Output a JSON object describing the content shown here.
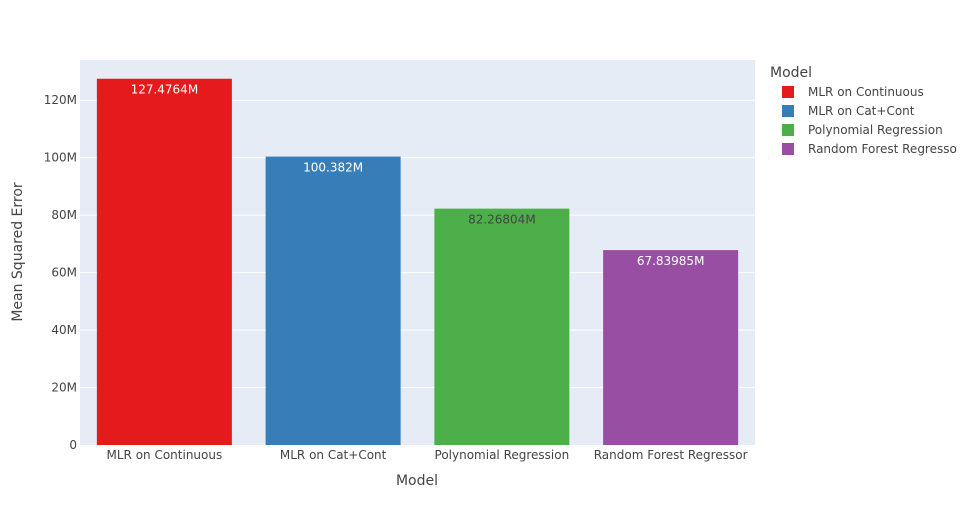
{
  "chart_data": {
    "type": "bar",
    "xlabel": "Model",
    "ylabel": "Mean Squared Error",
    "categories": [
      "MLR on Continuous",
      "MLR on Cat+Cont",
      "Polynomial Regression",
      "Random Forest Regressor"
    ],
    "values": [
      127476400,
      100382000,
      82268040,
      67839850
    ],
    "value_labels": [
      "127.4764M",
      "100.382M",
      "82.26804M",
      "67.83985M"
    ],
    "colors": [
      "#e41a1c",
      "#377eb8",
      "#4daf4a",
      "#984ea3"
    ],
    "label_colors": [
      "#ffffff",
      "#ffffff",
      "#444444",
      "#ffffff"
    ],
    "ylim": [
      0,
      134000000
    ],
    "yticks": [
      0,
      20000000,
      40000000,
      60000000,
      80000000,
      100000000,
      120000000
    ],
    "ytick_labels": [
      "0",
      "20M",
      "40M",
      "60M",
      "80M",
      "100M",
      "120M"
    ],
    "grid": true,
    "legend": {
      "title": "Model",
      "placement": "right",
      "entries": [
        "MLR on Continuous",
        "MLR on Cat+Cont",
        "Polynomial Regression",
        "Random Forest Regresso"
      ]
    },
    "plot_background": "#e5ecf6"
  }
}
